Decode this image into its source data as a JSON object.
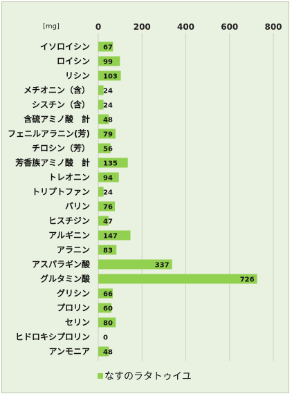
{
  "chart_data": {
    "type": "bar",
    "orientation": "horizontal",
    "unit": "[mg]",
    "xlim": [
      0,
      800
    ],
    "ticks": [
      0,
      200,
      400,
      600,
      800
    ],
    "categories": [
      "イソロイシン",
      "ロイシン",
      "リシン",
      "メチオニン（含）",
      "シスチン（含）",
      "含硫アミノ酸　計",
      "フェニルアラニン(芳)",
      "チロシン（芳）",
      "芳香族アミノ酸　計",
      "トレオニン",
      "トリプトファン",
      "バリン",
      "ヒスチジン",
      "アルギニン",
      "アラニン",
      "アスパラギン酸",
      "グルタミン酸",
      "グリシン",
      "プロリン",
      "セリン",
      "ヒドロキシプロリン",
      "アンモニア"
    ],
    "series": [
      {
        "name": "なすのラタトゥイユ",
        "values": [
          67,
          99,
          103,
          24,
          24,
          48,
          79,
          56,
          135,
          94,
          24,
          76,
          47,
          147,
          83,
          337,
          726,
          66,
          60,
          80,
          0,
          48
        ]
      }
    ],
    "grid": true,
    "legend": "bottom-center",
    "bar_color": "#92d050"
  }
}
